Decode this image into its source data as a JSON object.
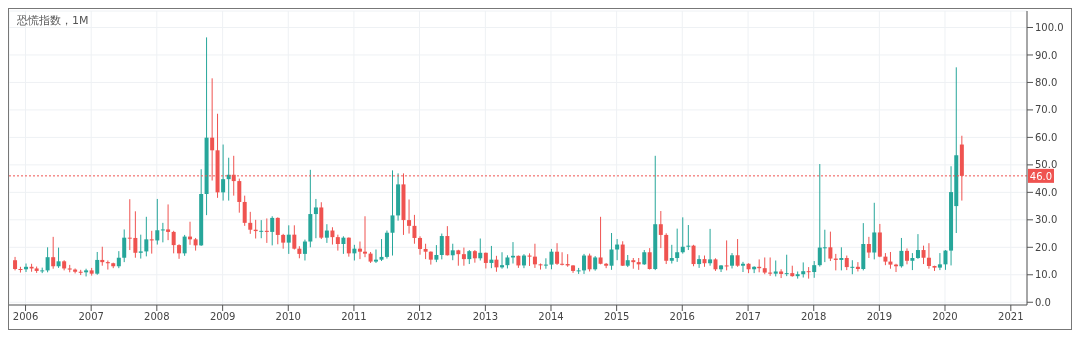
{
  "chart_data": {
    "type": "candlestick",
    "title": "恐慌指数，1M",
    "x": [
      "2005-11",
      "2005-12",
      "2006-01",
      "2006-02",
      "2006-03",
      "2006-04",
      "2006-05",
      "2006-06",
      "2006-07",
      "2006-08",
      "2006-09",
      "2006-10",
      "2006-11",
      "2006-12",
      "2007-01",
      "2007-02",
      "2007-03",
      "2007-04",
      "2007-05",
      "2007-06",
      "2007-07",
      "2007-08",
      "2007-09",
      "2007-10",
      "2007-11",
      "2007-12",
      "2008-01",
      "2008-02",
      "2008-03",
      "2008-04",
      "2008-05",
      "2008-06",
      "2008-07",
      "2008-08",
      "2008-09",
      "2008-10",
      "2008-11",
      "2008-12",
      "2009-01",
      "2009-02",
      "2009-03",
      "2009-04",
      "2009-05",
      "2009-06",
      "2009-07",
      "2009-08",
      "2009-09",
      "2009-10",
      "2009-11",
      "2009-12",
      "2010-01",
      "2010-02",
      "2010-03",
      "2010-04",
      "2010-05",
      "2010-06",
      "2010-07",
      "2010-08",
      "2010-09",
      "2010-10",
      "2010-11",
      "2010-12",
      "2011-01",
      "2011-02",
      "2011-03",
      "2011-04",
      "2011-05",
      "2011-06",
      "2011-07",
      "2011-08",
      "2011-09",
      "2011-10",
      "2011-11",
      "2011-12",
      "2012-01",
      "2012-02",
      "2012-03",
      "2012-04",
      "2012-05",
      "2012-06",
      "2012-07",
      "2012-08",
      "2012-09",
      "2012-10",
      "2012-11",
      "2012-12",
      "2013-01",
      "2013-02",
      "2013-03",
      "2013-04",
      "2013-05",
      "2013-06",
      "2013-07",
      "2013-08",
      "2013-09",
      "2013-10",
      "2013-11",
      "2013-12",
      "2014-01",
      "2014-02",
      "2014-03",
      "2014-04",
      "2014-05",
      "2014-06",
      "2014-07",
      "2014-08",
      "2014-09",
      "2014-10",
      "2014-11",
      "2014-12",
      "2015-01",
      "2015-02",
      "2015-03",
      "2015-04",
      "2015-05",
      "2015-06",
      "2015-07",
      "2015-08",
      "2015-09",
      "2015-10",
      "2015-11",
      "2015-12",
      "2016-01",
      "2016-02",
      "2016-03",
      "2016-04",
      "2016-05",
      "2016-06",
      "2016-07",
      "2016-08",
      "2016-09",
      "2016-10",
      "2016-11",
      "2016-12",
      "2017-01",
      "2017-02",
      "2017-03",
      "2017-04",
      "2017-05",
      "2017-06",
      "2017-07",
      "2017-08",
      "2017-09",
      "2017-10",
      "2017-11",
      "2017-12",
      "2018-01",
      "2018-02",
      "2018-03",
      "2018-04",
      "2018-05",
      "2018-06",
      "2018-07",
      "2018-08",
      "2018-09",
      "2018-10",
      "2018-11",
      "2018-12",
      "2019-01",
      "2019-02",
      "2019-03",
      "2019-04",
      "2019-05",
      "2019-06",
      "2019-07",
      "2019-08",
      "2019-09",
      "2019-10",
      "2019-11",
      "2019-12",
      "2020-01",
      "2020-02",
      "2020-03",
      "2020-04"
    ],
    "ohlc": [
      [
        15.3,
        16.5,
        11.6,
        12.1
      ],
      [
        12.1,
        12.9,
        10.8,
        12.0
      ],
      [
        12.0,
        14.1,
        11.0,
        12.9
      ],
      [
        12.9,
        14.0,
        11.1,
        12.3
      ],
      [
        12.3,
        13.0,
        10.7,
        11.4
      ],
      [
        11.4,
        12.6,
        10.6,
        11.6
      ],
      [
        11.6,
        20.0,
        10.9,
        16.4
      ],
      [
        16.4,
        23.8,
        12.2,
        13.1
      ],
      [
        13.1,
        19.9,
        12.5,
        14.9
      ],
      [
        14.9,
        15.3,
        11.6,
        12.3
      ],
      [
        12.3,
        13.6,
        10.9,
        11.9
      ],
      [
        11.9,
        12.3,
        10.5,
        11.1
      ],
      [
        11.1,
        11.8,
        9.9,
        10.9
      ],
      [
        10.9,
        12.2,
        9.4,
        11.6
      ],
      [
        11.6,
        12.5,
        9.7,
        10.4
      ],
      [
        10.4,
        18.3,
        10.0,
        15.4
      ],
      [
        15.4,
        20.2,
        13.3,
        14.6
      ],
      [
        14.6,
        15.2,
        11.9,
        14.2
      ],
      [
        14.2,
        14.4,
        12.4,
        13.1
      ],
      [
        13.1,
        18.6,
        12.4,
        16.2
      ],
      [
        16.2,
        26.5,
        14.6,
        23.5
      ],
      [
        23.5,
        37.5,
        19.0,
        23.4
      ],
      [
        23.4,
        33.1,
        16.2,
        18.0
      ],
      [
        18.0,
        24.6,
        15.9,
        18.5
      ],
      [
        18.5,
        31.1,
        16.7,
        22.9
      ],
      [
        22.9,
        26.0,
        17.7,
        22.5
      ],
      [
        22.5,
        37.6,
        21.0,
        26.2
      ],
      [
        26.2,
        28.9,
        21.8,
        26.5
      ],
      [
        26.5,
        35.6,
        22.6,
        25.6
      ],
      [
        25.6,
        26.0,
        17.8,
        20.8
      ],
      [
        20.8,
        21.1,
        15.8,
        17.8
      ],
      [
        17.8,
        24.5,
        16.9,
        23.9
      ],
      [
        23.9,
        29.3,
        20.9,
        22.9
      ],
      [
        22.9,
        23.4,
        18.8,
        20.7
      ],
      [
        20.7,
        48.4,
        20.5,
        39.4
      ],
      [
        39.4,
        96.4,
        31.7,
        59.9
      ],
      [
        59.9,
        81.5,
        44.3,
        55.3
      ],
      [
        55.3,
        68.6,
        38.0,
        40.0
      ],
      [
        40.0,
        57.4,
        37.0,
        44.8
      ],
      [
        44.8,
        52.6,
        37.0,
        46.4
      ],
      [
        46.4,
        53.3,
        38.8,
        44.1
      ],
      [
        44.1,
        45.0,
        32.6,
        36.5
      ],
      [
        36.5,
        38.8,
        27.8,
        28.9
      ],
      [
        28.9,
        32.9,
        24.9,
        26.4
      ],
      [
        26.4,
        30.0,
        23.2,
        25.9
      ],
      [
        25.9,
        29.9,
        23.3,
        26.0
      ],
      [
        26.0,
        30.5,
        21.6,
        25.6
      ],
      [
        25.6,
        31.3,
        20.7,
        30.7
      ],
      [
        30.7,
        30.9,
        21.1,
        24.5
      ],
      [
        24.5,
        24.9,
        19.5,
        21.7
      ],
      [
        21.7,
        28.0,
        17.6,
        24.6
      ],
      [
        24.6,
        28.0,
        19.2,
        19.5
      ],
      [
        19.5,
        20.4,
        16.0,
        17.6
      ],
      [
        17.6,
        22.8,
        15.2,
        22.1
      ],
      [
        22.1,
        48.2,
        20.0,
        32.1
      ],
      [
        32.1,
        37.6,
        23.3,
        34.5
      ],
      [
        34.5,
        36.4,
        23.0,
        23.5
      ],
      [
        23.5,
        28.4,
        21.6,
        26.1
      ],
      [
        26.1,
        27.3,
        21.0,
        23.7
      ],
      [
        23.7,
        24.6,
        18.8,
        21.2
      ],
      [
        21.2,
        24.0,
        17.6,
        23.5
      ],
      [
        23.5,
        23.6,
        16.6,
        17.8
      ],
      [
        17.8,
        20.9,
        15.2,
        19.5
      ],
      [
        19.5,
        22.1,
        15.7,
        18.4
      ],
      [
        18.4,
        31.3,
        16.4,
        17.7
      ],
      [
        17.7,
        18.3,
        14.3,
        14.8
      ],
      [
        14.8,
        19.2,
        14.3,
        15.5
      ],
      [
        15.5,
        23.0,
        15.0,
        16.5
      ],
      [
        16.5,
        26.1,
        15.9,
        25.3
      ],
      [
        25.3,
        48.0,
        17.0,
        31.6
      ],
      [
        31.6,
        46.9,
        29.7,
        42.9
      ],
      [
        42.9,
        46.9,
        24.5,
        29.9
      ],
      [
        29.9,
        37.4,
        25.0,
        27.8
      ],
      [
        27.8,
        31.8,
        21.3,
        23.4
      ],
      [
        23.4,
        24.0,
        17.3,
        19.4
      ],
      [
        19.4,
        21.3,
        15.7,
        18.4
      ],
      [
        18.4,
        18.5,
        13.7,
        15.5
      ],
      [
        15.5,
        20.8,
        14.6,
        17.2
      ],
      [
        17.2,
        25.0,
        15.6,
        24.1
      ],
      [
        24.1,
        27.7,
        17.0,
        17.1
      ],
      [
        17.1,
        21.3,
        15.3,
        18.9
      ],
      [
        18.9,
        19.1,
        13.3,
        17.5
      ],
      [
        17.5,
        19.9,
        13.3,
        15.7
      ],
      [
        15.7,
        19.0,
        13.9,
        18.6
      ],
      [
        18.6,
        19.0,
        14.4,
        16.0
      ],
      [
        16.0,
        23.2,
        15.2,
        18.0
      ],
      [
        18.0,
        18.1,
        12.3,
        14.3
      ],
      [
        14.3,
        20.5,
        12.4,
        15.5
      ],
      [
        15.5,
        16.9,
        11.1,
        12.7
      ],
      [
        12.7,
        18.2,
        12.2,
        13.5
      ],
      [
        13.5,
        17.1,
        12.3,
        16.3
      ],
      [
        16.3,
        21.9,
        14.1,
        16.9
      ],
      [
        16.9,
        17.0,
        12.5,
        13.4
      ],
      [
        13.4,
        17.5,
        12.4,
        17.0
      ],
      [
        17.0,
        17.8,
        13.2,
        16.6
      ],
      [
        16.6,
        21.3,
        12.5,
        13.8
      ],
      [
        13.8,
        14.1,
        11.9,
        13.7
      ],
      [
        13.7,
        16.0,
        12.2,
        13.7
      ],
      [
        13.7,
        19.4,
        12.0,
        18.4
      ],
      [
        18.4,
        21.5,
        13.6,
        14.0
      ],
      [
        14.0,
        18.2,
        13.4,
        13.9
      ],
      [
        13.9,
        17.5,
        12.9,
        13.4
      ],
      [
        13.4,
        13.5,
        10.7,
        11.4
      ],
      [
        11.4,
        12.5,
        10.3,
        11.6
      ],
      [
        11.6,
        17.6,
        10.3,
        17.0
      ],
      [
        17.0,
        17.7,
        11.2,
        12.0
      ],
      [
        12.0,
        16.8,
        11.5,
        16.3
      ],
      [
        16.3,
        31.1,
        13.8,
        14.0
      ],
      [
        14.0,
        14.3,
        12.4,
        13.3
      ],
      [
        13.3,
        25.2,
        11.8,
        19.2
      ],
      [
        19.2,
        23.0,
        15.3,
        21.0
      ],
      [
        21.0,
        22.2,
        13.2,
        13.3
      ],
      [
        13.3,
        17.2,
        12.8,
        15.3
      ],
      [
        15.3,
        16.1,
        12.2,
        14.6
      ],
      [
        14.6,
        16.1,
        11.8,
        13.8
      ],
      [
        13.8,
        19.0,
        13.6,
        18.2
      ],
      [
        18.2,
        19.7,
        11.9,
        12.1
      ],
      [
        12.1,
        53.3,
        11.7,
        28.4
      ],
      [
        28.4,
        33.2,
        19.7,
        24.5
      ],
      [
        24.5,
        25.1,
        13.9,
        15.1
      ],
      [
        15.1,
        20.9,
        14.1,
        16.1
      ],
      [
        16.1,
        26.8,
        14.7,
        18.2
      ],
      [
        18.2,
        30.9,
        17.7,
        20.2
      ],
      [
        20.2,
        28.1,
        19.0,
        20.6
      ],
      [
        20.6,
        20.9,
        13.1,
        13.9
      ],
      [
        13.9,
        17.1,
        12.5,
        15.7
      ],
      [
        15.7,
        17.0,
        12.9,
        14.2
      ],
      [
        14.2,
        26.7,
        13.3,
        15.6
      ],
      [
        15.6,
        16.0,
        11.4,
        12.0
      ],
      [
        12.0,
        13.5,
        11.0,
        13.4
      ],
      [
        13.4,
        22.5,
        11.6,
        13.3
      ],
      [
        13.3,
        17.9,
        12.3,
        17.1
      ],
      [
        17.1,
        23.0,
        12.9,
        13.3
      ],
      [
        13.3,
        14.7,
        11.0,
        14.0
      ],
      [
        14.0,
        14.2,
        10.6,
        12.0
      ],
      [
        12.0,
        13.1,
        10.6,
        12.9
      ],
      [
        12.9,
        15.6,
        10.9,
        12.4
      ],
      [
        12.4,
        16.3,
        10.2,
        10.8
      ],
      [
        10.8,
        16.3,
        9.6,
        10.4
      ],
      [
        10.4,
        15.2,
        9.4,
        11.2
      ],
      [
        11.2,
        12.0,
        8.8,
        10.3
      ],
      [
        10.3,
        17.3,
        9.5,
        10.6
      ],
      [
        10.6,
        13.3,
        9.3,
        9.5
      ],
      [
        9.5,
        11.2,
        8.6,
        10.2
      ],
      [
        10.2,
        14.5,
        9.0,
        11.3
      ],
      [
        11.3,
        12.8,
        8.6,
        11.0
      ],
      [
        11.0,
        15.0,
        8.9,
        13.5
      ],
      [
        13.5,
        50.3,
        13.0,
        19.9
      ],
      [
        19.9,
        26.4,
        14.6,
        20.0
      ],
      [
        20.0,
        25.7,
        15.0,
        15.9
      ],
      [
        15.9,
        17.6,
        11.6,
        15.4
      ],
      [
        15.4,
        20.0,
        11.6,
        16.1
      ],
      [
        16.1,
        17.0,
        11.7,
        12.8
      ],
      [
        12.8,
        15.3,
        10.2,
        12.9
      ],
      [
        12.9,
        14.6,
        11.2,
        12.1
      ],
      [
        12.1,
        28.8,
        11.6,
        21.2
      ],
      [
        21.2,
        23.8,
        16.1,
        18.1
      ],
      [
        18.1,
        36.2,
        15.6,
        25.4
      ],
      [
        25.4,
        28.5,
        16.4,
        16.6
      ],
      [
        16.6,
        17.9,
        13.5,
        14.8
      ],
      [
        14.8,
        18.3,
        12.2,
        13.7
      ],
      [
        13.7,
        14.0,
        11.0,
        13.1
      ],
      [
        13.1,
        23.4,
        12.6,
        18.7
      ],
      [
        18.7,
        19.6,
        13.8,
        15.1
      ],
      [
        15.1,
        17.9,
        11.7,
        16.1
      ],
      [
        16.1,
        24.8,
        15.8,
        19.0
      ],
      [
        19.0,
        20.6,
        13.9,
        16.2
      ],
      [
        16.2,
        21.5,
        12.2,
        13.2
      ],
      [
        13.2,
        13.3,
        11.4,
        12.6
      ],
      [
        12.6,
        17.9,
        11.7,
        13.8
      ],
      [
        13.8,
        19.0,
        11.8,
        18.8
      ],
      [
        18.8,
        49.5,
        13.4,
        40.1
      ],
      [
        35.0,
        85.5,
        25.2,
        53.5
      ],
      [
        57.4,
        60.6,
        37.0,
        46.0
      ]
    ],
    "colors": [
      "#ef5350",
      "#ef5350",
      "#26a69a",
      "#ef5350",
      "#ef5350",
      "#26a69a",
      "#26a69a",
      "#ef5350",
      "#26a69a",
      "#ef5350",
      "#ef5350",
      "#ef5350",
      "#ef5350",
      "#26a69a",
      "#ef5350",
      "#26a69a",
      "#ef5350",
      "#ef5350",
      "#ef5350",
      "#26a69a",
      "#26a69a",
      "#ef5350",
      "#ef5350",
      "#26a69a",
      "#26a69a",
      "#ef5350",
      "#26a69a",
      "#26a69a",
      "#ef5350",
      "#ef5350",
      "#ef5350",
      "#26a69a",
      "#ef5350",
      "#ef5350",
      "#26a69a",
      "#26a69a",
      "#ef5350",
      "#ef5350",
      "#26a69a",
      "#26a69a",
      "#ef5350",
      "#ef5350",
      "#ef5350",
      "#ef5350",
      "#ef5350",
      "#26a69a",
      "#ef5350",
      "#26a69a",
      "#ef5350",
      "#ef5350",
      "#26a69a",
      "#ef5350",
      "#ef5350",
      "#26a69a",
      "#26a69a",
      "#26a69a",
      "#ef5350",
      "#26a69a",
      "#ef5350",
      "#ef5350",
      "#26a69a",
      "#ef5350",
      "#26a69a",
      "#ef5350",
      "#ef5350",
      "#ef5350",
      "#26a69a",
      "#26a69a",
      "#26a69a",
      "#26a69a",
      "#26a69a",
      "#ef5350",
      "#ef5350",
      "#ef5350",
      "#ef5350",
      "#ef5350",
      "#ef5350",
      "#26a69a",
      "#26a69a",
      "#ef5350",
      "#26a69a",
      "#ef5350",
      "#ef5350",
      "#26a69a",
      "#ef5350",
      "#26a69a",
      "#ef5350",
      "#26a69a",
      "#ef5350",
      "#26a69a",
      "#26a69a",
      "#26a69a",
      "#ef5350",
      "#26a69a",
      "#ef5350",
      "#ef5350",
      "#ef5350",
      "#26a69a",
      "#26a69a",
      "#ef5350",
      "#ef5350",
      "#ef5350",
      "#ef5350",
      "#26a69a",
      "#26a69a",
      "#ef5350",
      "#26a69a",
      "#ef5350",
      "#ef5350",
      "#26a69a",
      "#26a69a",
      "#ef5350",
      "#26a69a",
      "#ef5350",
      "#ef5350",
      "#26a69a",
      "#ef5350",
      "#26a69a",
      "#ef5350",
      "#ef5350",
      "#26a69a",
      "#26a69a",
      "#26a69a",
      "#26a69a",
      "#ef5350",
      "#26a69a",
      "#ef5350",
      "#26a69a",
      "#ef5350",
      "#26a69a",
      "#ef5350",
      "#26a69a",
      "#ef5350",
      "#26a69a",
      "#ef5350",
      "#26a69a",
      "#ef5350",
      "#ef5350",
      "#ef5350",
      "#26a69a",
      "#ef5350",
      "#26a69a",
      "#ef5350",
      "#26a69a",
      "#26a69a",
      "#ef5350",
      "#26a69a",
      "#26a69a",
      "#26a69a",
      "#ef5350",
      "#ef5350",
      "#26a69a",
      "#ef5350",
      "#26a69a",
      "#ef5350",
      "#26a69a",
      "#ef5350",
      "#26a69a",
      "#ef5350",
      "#ef5350",
      "#ef5350",
      "#ef5350",
      "#26a69a",
      "#ef5350",
      "#26a69a",
      "#26a69a",
      "#ef5350",
      "#ef5350",
      "#ef5350",
      "#26a69a",
      "#26a69a",
      "#26a69a",
      "#26a69a",
      "#ef5350"
    ],
    "xlim": [
      "2005-10",
      "2021-04"
    ],
    "xticks": [
      "2006",
      "2007",
      "2008",
      "2009",
      "2010",
      "2011",
      "2012",
      "2013",
      "2014",
      "2015",
      "2016",
      "2017",
      "2018",
      "2019",
      "2020",
      "2021"
    ],
    "ylim": [
      -1,
      106
    ],
    "yticks": [
      {
        "value": 0,
        "label": "0.0"
      },
      {
        "value": 10,
        "label": "10.0"
      },
      {
        "value": 20,
        "label": "20.0"
      },
      {
        "value": 30,
        "label": "30.0"
      },
      {
        "value": 40,
        "label": "40.0"
      },
      {
        "value": 50,
        "label": "50.0"
      },
      {
        "value": 60,
        "label": "60.0"
      },
      {
        "value": 70,
        "label": "70.0"
      },
      {
        "value": 80,
        "label": "80.0"
      },
      {
        "value": 90,
        "label": "90.0"
      },
      {
        "value": 100,
        "label": "100.0"
      }
    ],
    "ref_lines": [
      {
        "axis": "y",
        "value": 46,
        "label": "46.0",
        "color": "#ef5350",
        "line_style": "dotted"
      }
    ],
    "grid": true
  }
}
